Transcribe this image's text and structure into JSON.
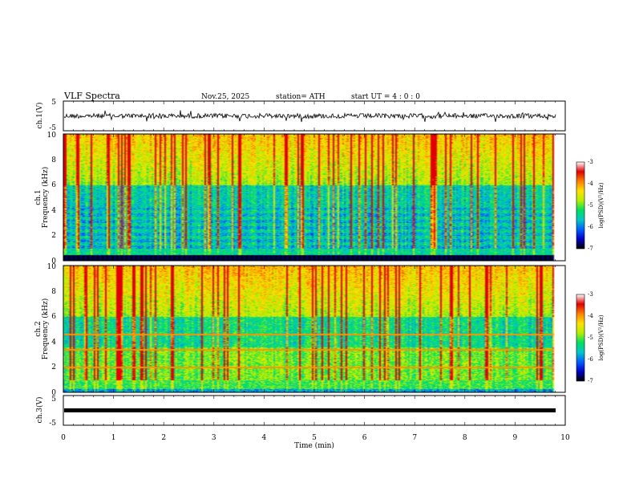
{
  "header": {
    "title": "VLF  Spectra",
    "date": "Nov.25, 2025",
    "station": "station= ATH",
    "start_ut": "start  UT  =   4  : 0  : 0"
  },
  "colors": {
    "colormap": [
      "#000000",
      "#0000c8",
      "#0060ff",
      "#00c8c8",
      "#00e060",
      "#b4f000",
      "#ffe000",
      "#ff8000",
      "#e00000",
      "#ffffff"
    ],
    "waveform": "#000000"
  },
  "chart_data": [
    {
      "type": "line",
      "id": "ch1",
      "ylabel": "ch.1(V)",
      "ylim": [
        -5,
        5
      ],
      "yticks": [
        "5",
        "-5"
      ],
      "xlim": [
        0,
        10
      ],
      "description_values": "broadband noisy waveform around 0 V, amplitude about ±1 V with spikes to about ±2 V"
    },
    {
      "type": "heatmap",
      "id": "ch1_spectrogram",
      "channel_label": "ch.1",
      "ylabel": "Frequency  (kHz)",
      "ylim": [
        0,
        10
      ],
      "yticks": [
        "0",
        "2",
        "4",
        "6",
        "8",
        "10"
      ],
      "xlim": [
        0,
        10
      ],
      "colorbar": {
        "label": "log(PSD)(V²/Hz)",
        "range": [
          -7,
          -3
        ],
        "ticks": [
          "-3",
          "-4",
          "-5",
          "-6",
          "-7"
        ]
      }
    },
    {
      "type": "heatmap",
      "id": "ch2_spectrogram",
      "channel_label": "ch.2",
      "ylabel": "Frequency  (kHz)",
      "ylim": [
        0,
        10
      ],
      "yticks": [
        "0",
        "2",
        "4",
        "6",
        "8",
        "10"
      ],
      "xlim": [
        0,
        10
      ],
      "colorbar": {
        "label": "log(PSD)(V²/Hz)",
        "range": [
          -7,
          -3
        ],
        "ticks": [
          "-3",
          "-4",
          "-5",
          "-6",
          "-7"
        ]
      }
    },
    {
      "type": "line",
      "id": "ch3",
      "ylabel": "ch.3(V)",
      "ylim": [
        -5,
        5
      ],
      "yticks": [
        "5",
        "-5"
      ],
      "xlim": [
        0,
        10
      ],
      "description_values": "flat thick trace near -1 V"
    }
  ],
  "xaxis": {
    "label": "Time  (min)",
    "ticks": [
      "0",
      "1",
      "2",
      "3",
      "4",
      "5",
      "6",
      "7",
      "8",
      "9",
      "10"
    ]
  }
}
